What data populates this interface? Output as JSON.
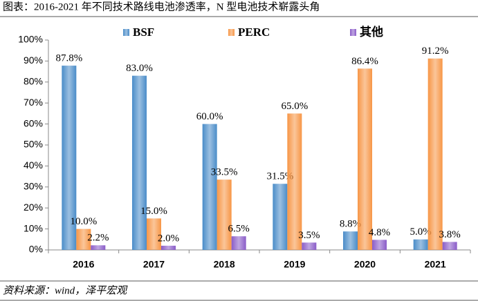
{
  "chart_data": {
    "type": "bar",
    "title": "图表：2016-2021 年不同技术路线电池渗透率，N 型电池技术崭露头角",
    "source": "资料来源：wind，泽平宏观",
    "categories": [
      "2016",
      "2017",
      "2018",
      "2019",
      "2020",
      "2021"
    ],
    "series": [
      {
        "name": "BSF",
        "color": "#4a8cc8",
        "values": [
          87.8,
          83.0,
          60.0,
          31.5,
          8.8,
          5.0
        ],
        "value_labels": [
          "87.8%",
          "83.0%",
          "60.0%",
          "31.5%",
          "8.8%",
          "5.0%"
        ]
      },
      {
        "name": "PERC",
        "color": "#f79646",
        "values": [
          10.0,
          15.0,
          33.5,
          65.0,
          86.4,
          91.2
        ],
        "value_labels": [
          "10.0%",
          "15.0%",
          "33.5%",
          "65.0%",
          "86.4%",
          "91.2%"
        ]
      },
      {
        "name": "其他",
        "color": "#8a5cc8",
        "values": [
          2.2,
          2.0,
          6.5,
          3.5,
          4.8,
          3.8
        ],
        "value_labels": [
          "2.2%",
          "2.0%",
          "6.5%",
          "3.5%",
          "4.8%",
          "3.8%"
        ]
      }
    ],
    "ylim": [
      0,
      100
    ],
    "yticks": [
      {
        "value": 0,
        "label": "0%"
      },
      {
        "value": 10,
        "label": "10%"
      },
      {
        "value": 20,
        "label": "20%"
      },
      {
        "value": 30,
        "label": "30%"
      },
      {
        "value": 40,
        "label": "40%"
      },
      {
        "value": 50,
        "label": "50%"
      },
      {
        "value": 60,
        "label": "60%"
      },
      {
        "value": 70,
        "label": "70%"
      },
      {
        "value": 80,
        "label": "80%"
      },
      {
        "value": 90,
        "label": "90%"
      },
      {
        "value": 100,
        "label": "100%"
      }
    ],
    "grid": false,
    "legend": "top"
  }
}
